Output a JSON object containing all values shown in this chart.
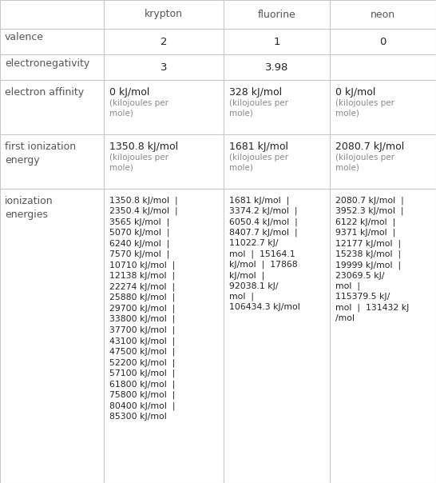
{
  "headers": [
    "",
    "krypton",
    "fluorine",
    "neon"
  ],
  "col_bounds": [
    0,
    130,
    280,
    413,
    546
  ],
  "row_bounds": [
    0,
    36,
    68,
    100,
    168,
    236,
    604
  ],
  "line_color": "#c8c8c8",
  "line_width": 0.8,
  "background_color": "#ffffff",
  "header_color": "#555555",
  "label_color": "#555555",
  "value_color": "#222222",
  "subtext_color": "#888888",
  "valence": [
    "2",
    "1",
    "0"
  ],
  "electronegativity": [
    "3",
    "3.98",
    ""
  ],
  "electron_affinity_main": [
    "0 kJ/mol",
    "328 kJ/mol",
    "0 kJ/mol"
  ],
  "electron_affinity_sub": [
    "(kilojoules per\nmole)",
    "(kilojoules per\nmole)",
    "(kilojoules per\nmole)"
  ],
  "first_ie_main": [
    "1350.8 kJ/mol",
    "1681 kJ/mol",
    "2080.7 kJ/mol"
  ],
  "first_ie_sub": [
    "(kilojoules per\nmole)",
    "(kilojoules per\nmole)",
    "(kilojoules per\nmole)"
  ],
  "kr_ie": "1350.8 kJ/mol  |\n2350.4 kJ/mol  |\n3565 kJ/mol  |\n5070 kJ/mol  |\n6240 kJ/mol  |\n7570 kJ/mol  |\n10710 kJ/mol  |\n12138 kJ/mol  |\n22274 kJ/mol  |\n25880 kJ/mol  |\n29700 kJ/mol  |\n33800 kJ/mol  |\n37700 kJ/mol  |\n43100 kJ/mol  |\n47500 kJ/mol  |\n52200 kJ/mol  |\n57100 kJ/mol  |\n61800 kJ/mol  |\n75800 kJ/mol  |\n80400 kJ/mol  |\n85300 kJ/mol",
  "fl_ie": "1681 kJ/mol  |\n3374.2 kJ/mol  |\n6050.4 kJ/mol  |\n8407.7 kJ/mol  |\n11022.7 kJ/\nmol  |  15164.1\nkJ/mol  |  17868\nkJ/mol  |\n92038.1 kJ/\nmol  |\n106434.3 kJ/mol",
  "ne_ie": "2080.7 kJ/mol  |\n3952.3 kJ/mol  |\n6122 kJ/mol  |\n9371 kJ/mol  |\n12177 kJ/mol  |\n15238 kJ/mol  |\n19999 kJ/mol  |\n23069.5 kJ/\nmol  |\n115379.5 kJ/\nmol  |  131432 kJ\n/mol"
}
